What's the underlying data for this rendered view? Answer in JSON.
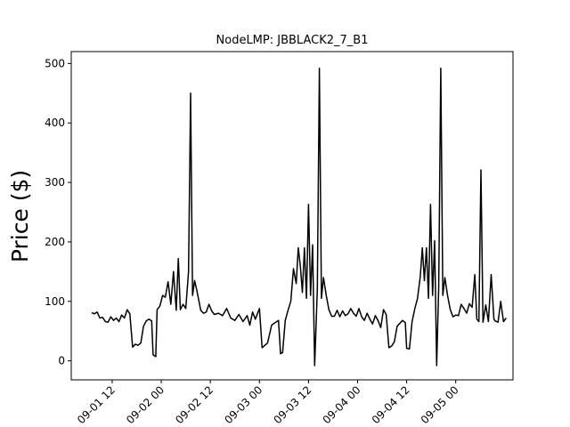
{
  "chart_data": {
    "type": "line",
    "title": "NodeLMP: JBBLACK2_7_B1",
    "xlabel": "",
    "ylabel": "Price ($)",
    "xlim": [
      "2019-09-01 02:00",
      "2019-09-05 14:00"
    ],
    "ylim": [
      -32,
      520
    ],
    "yticks": [
      0,
      100,
      200,
      300,
      400,
      500
    ],
    "ytick_labels": [
      "0",
      "100",
      "200",
      "300",
      "400",
      "500"
    ],
    "xticks": [
      "2019-09-01 12:00",
      "2019-09-02 00:00",
      "2019-09-02 12:00",
      "2019-09-03 00:00",
      "2019-09-03 12:00",
      "2019-09-04 00:00",
      "2019-09-04 12:00",
      "2019-09-05 00:00"
    ],
    "xtick_labels": [
      "09-01 12",
      "09-02 00",
      "09-02 12",
      "09-03 00",
      "09-03 12",
      "09-04 00",
      "09-04 12",
      "09-05 00"
    ],
    "grid": false,
    "series": [
      {
        "color": "#000000",
        "points": [
          [
            "2019-09-01 07:00",
            81
          ],
          [
            "2019-09-01 07:40",
            79
          ],
          [
            "2019-09-01 08:20",
            82
          ],
          [
            "2019-09-01 09:00",
            72
          ],
          [
            "2019-09-01 09:40",
            73
          ],
          [
            "2019-09-01 10:20",
            66
          ],
          [
            "2019-09-01 11:00",
            65
          ],
          [
            "2019-09-01 11:40",
            74
          ],
          [
            "2019-09-01 12:20",
            68
          ],
          [
            "2019-09-01 13:00",
            72
          ],
          [
            "2019-09-01 13:40",
            66
          ],
          [
            "2019-09-01 14:20",
            77
          ],
          [
            "2019-09-01 15:00",
            72
          ],
          [
            "2019-09-01 15:40",
            86
          ],
          [
            "2019-09-01 16:20",
            79
          ],
          [
            "2019-09-01 17:00",
            23
          ],
          [
            "2019-09-01 17:40",
            28
          ],
          [
            "2019-09-01 18:20",
            26
          ],
          [
            "2019-09-01 19:00",
            30
          ],
          [
            "2019-09-01 19:40",
            58
          ],
          [
            "2019-09-01 20:20",
            67
          ],
          [
            "2019-09-01 21:00",
            70
          ],
          [
            "2019-09-01 21:40",
            67
          ],
          [
            "2019-09-01 22:00",
            10
          ],
          [
            "2019-09-01 22:40",
            7
          ],
          [
            "2019-09-01 23:00",
            86
          ],
          [
            "2019-09-01 23:40",
            92
          ],
          [
            "2019-09-02 00:20",
            110
          ],
          [
            "2019-09-02 01:00",
            107
          ],
          [
            "2019-09-02 01:40",
            133
          ],
          [
            "2019-09-02 02:20",
            95
          ],
          [
            "2019-09-02 03:00",
            150
          ],
          [
            "2019-09-02 03:40",
            85
          ],
          [
            "2019-09-02 04:10",
            172
          ],
          [
            "2019-09-02 04:40",
            86
          ],
          [
            "2019-09-02 05:20",
            95
          ],
          [
            "2019-09-02 06:00",
            88
          ],
          [
            "2019-09-02 06:40",
            150
          ],
          [
            "2019-09-02 07:10",
            450
          ],
          [
            "2019-09-02 07:40",
            110
          ],
          [
            "2019-09-02 08:10",
            135
          ],
          [
            "2019-09-02 08:40",
            120
          ],
          [
            "2019-09-02 09:40",
            85
          ],
          [
            "2019-09-02 10:20",
            80
          ],
          [
            "2019-09-02 11:00",
            82
          ],
          [
            "2019-09-02 11:40",
            95
          ],
          [
            "2019-09-02 12:20",
            84
          ],
          [
            "2019-09-02 13:00",
            78
          ],
          [
            "2019-09-02 14:00",
            80
          ],
          [
            "2019-09-02 15:00",
            76
          ],
          [
            "2019-09-02 16:00",
            88
          ],
          [
            "2019-09-02 17:00",
            72
          ],
          [
            "2019-09-02 18:00",
            68
          ],
          [
            "2019-09-02 19:00",
            78
          ],
          [
            "2019-09-02 20:00",
            66
          ],
          [
            "2019-09-02 21:00",
            76
          ],
          [
            "2019-09-02 21:40",
            60
          ],
          [
            "2019-09-02 22:20",
            82
          ],
          [
            "2019-09-02 23:00",
            70
          ],
          [
            "2019-09-03 00:00",
            88
          ],
          [
            "2019-09-03 00:40",
            22
          ],
          [
            "2019-09-03 01:20",
            26
          ],
          [
            "2019-09-03 02:00",
            30
          ],
          [
            "2019-09-03 03:00",
            60
          ],
          [
            "2019-09-03 04:00",
            65
          ],
          [
            "2019-09-03 04:40",
            68
          ],
          [
            "2019-09-03 05:10",
            12
          ],
          [
            "2019-09-03 05:40",
            14
          ],
          [
            "2019-09-03 06:20",
            68
          ],
          [
            "2019-09-03 07:00",
            85
          ],
          [
            "2019-09-03 07:40",
            100
          ],
          [
            "2019-09-03 08:20",
            155
          ],
          [
            "2019-09-03 09:00",
            130
          ],
          [
            "2019-09-03 09:30",
            190
          ],
          [
            "2019-09-03 10:00",
            160
          ],
          [
            "2019-09-03 10:30",
            115
          ],
          [
            "2019-09-03 11:00",
            190
          ],
          [
            "2019-09-03 11:30",
            105
          ],
          [
            "2019-09-03 12:00",
            263
          ],
          [
            "2019-09-03 12:30",
            110
          ],
          [
            "2019-09-03 13:00",
            195
          ],
          [
            "2019-09-03 13:30",
            -8
          ],
          [
            "2019-09-03 14:10",
            120
          ],
          [
            "2019-09-03 14:40",
            492
          ],
          [
            "2019-09-03 15:10",
            105
          ],
          [
            "2019-09-03 15:40",
            140
          ],
          [
            "2019-09-03 16:20",
            110
          ],
          [
            "2019-09-03 17:00",
            86
          ],
          [
            "2019-09-03 17:40",
            75
          ],
          [
            "2019-09-03 18:20",
            75
          ],
          [
            "2019-09-03 19:00",
            85
          ],
          [
            "2019-09-03 19:40",
            74
          ],
          [
            "2019-09-03 20:20",
            84
          ],
          [
            "2019-09-03 21:00",
            76
          ],
          [
            "2019-09-03 21:40",
            79
          ],
          [
            "2019-09-03 22:20",
            88
          ],
          [
            "2019-09-03 23:00",
            80
          ],
          [
            "2019-09-03 23:40",
            75
          ],
          [
            "2019-09-04 00:20",
            88
          ],
          [
            "2019-09-04 01:00",
            74
          ],
          [
            "2019-09-04 01:40",
            68
          ],
          [
            "2019-09-04 02:20",
            80
          ],
          [
            "2019-09-04 03:00",
            70
          ],
          [
            "2019-09-04 03:40",
            62
          ],
          [
            "2019-09-04 04:20",
            76
          ],
          [
            "2019-09-04 05:00",
            68
          ],
          [
            "2019-09-04 05:40",
            56
          ],
          [
            "2019-09-04 06:20",
            86
          ],
          [
            "2019-09-04 07:00",
            78
          ],
          [
            "2019-09-04 07:40",
            22
          ],
          [
            "2019-09-04 08:20",
            25
          ],
          [
            "2019-09-04 09:00",
            32
          ],
          [
            "2019-09-04 09:40",
            58
          ],
          [
            "2019-09-04 10:20",
            63
          ],
          [
            "2019-09-04 11:00",
            68
          ],
          [
            "2019-09-04 11:40",
            64
          ],
          [
            "2019-09-04 12:00",
            21
          ],
          [
            "2019-09-04 12:40",
            20
          ],
          [
            "2019-09-04 13:20",
            66
          ],
          [
            "2019-09-04 14:00",
            88
          ],
          [
            "2019-09-04 14:40",
            105
          ],
          [
            "2019-09-04 15:20",
            142
          ],
          [
            "2019-09-04 15:50",
            190
          ],
          [
            "2019-09-04 16:20",
            135
          ],
          [
            "2019-09-04 16:50",
            190
          ],
          [
            "2019-09-04 17:20",
            105
          ],
          [
            "2019-09-04 17:50",
            263
          ],
          [
            "2019-09-04 18:20",
            110
          ],
          [
            "2019-09-04 18:50",
            202
          ],
          [
            "2019-09-04 19:20",
            -8
          ],
          [
            "2019-09-04 19:50",
            125
          ],
          [
            "2019-09-04 20:20",
            492
          ],
          [
            "2019-09-04 20:50",
            110
          ],
          [
            "2019-09-04 21:20",
            140
          ],
          [
            "2019-09-04 22:00",
            110
          ],
          [
            "2019-09-04 22:40",
            86
          ],
          [
            "2019-09-04 23:20",
            74
          ],
          [
            "2019-09-05 00:00",
            77
          ],
          [
            "2019-09-05 00:40",
            76
          ],
          [
            "2019-09-05 01:20",
            95
          ],
          [
            "2019-09-05 02:00",
            88
          ],
          [
            "2019-09-05 02:40",
            80
          ],
          [
            "2019-09-05 03:20",
            96
          ],
          [
            "2019-09-05 04:00",
            90
          ],
          [
            "2019-09-05 04:40",
            145
          ],
          [
            "2019-09-05 05:10",
            70
          ],
          [
            "2019-09-05 05:40",
            66
          ],
          [
            "2019-09-05 06:10",
            321
          ],
          [
            "2019-09-05 06:40",
            65
          ],
          [
            "2019-09-05 07:20",
            94
          ],
          [
            "2019-09-05 08:00",
            66
          ],
          [
            "2019-09-05 08:40",
            145
          ],
          [
            "2019-09-05 09:20",
            70
          ],
          [
            "2019-09-05 09:40",
            67
          ],
          [
            "2019-09-05 10:20",
            65
          ],
          [
            "2019-09-05 11:00",
            100
          ],
          [
            "2019-09-05 11:40",
            66
          ],
          [
            "2019-09-05 12:20",
            72
          ]
        ]
      }
    ]
  }
}
